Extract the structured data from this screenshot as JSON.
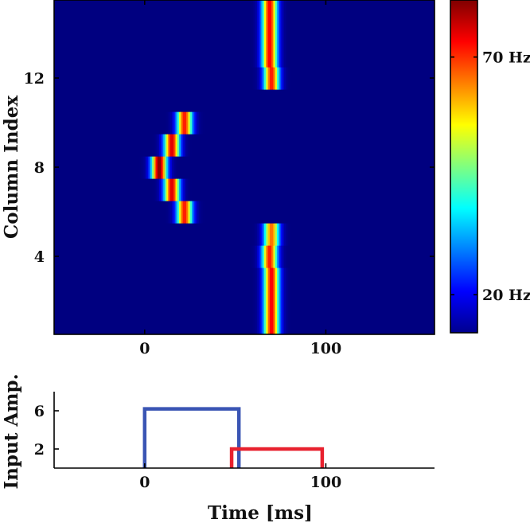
{
  "chart_data": [
    {
      "type": "heatmap",
      "xlabel": "",
      "ylabel": "Column Index",
      "xlim": [
        -50,
        160
      ],
      "ylim": [
        0.5,
        15.5
      ],
      "x_ticks": [
        0,
        100
      ],
      "y_ticks": [
        4,
        8,
        12
      ],
      "colorbar": {
        "ticks": [
          {
            "value": 20,
            "label": "20 Hz"
          },
          {
            "value": 70,
            "label": "70 Hz"
          }
        ],
        "range": [
          12,
          82
        ]
      },
      "colormap": "jet",
      "baseline_rate": 12,
      "grid": false,
      "bursts": [
        {
          "column": 8,
          "time": 8,
          "rate": 82
        },
        {
          "column": 7,
          "time": 15,
          "rate": 76
        },
        {
          "column": 9,
          "time": 15,
          "rate": 76
        },
        {
          "column": 6,
          "time": 22,
          "rate": 72
        },
        {
          "column": 10,
          "time": 22,
          "rate": 72
        },
        {
          "column": 1,
          "time": 70,
          "rate": 74
        },
        {
          "column": 2,
          "time": 70,
          "rate": 74
        },
        {
          "column": 3,
          "time": 70,
          "rate": 74
        },
        {
          "column": 4,
          "time": 69,
          "rate": 72
        },
        {
          "column": 5,
          "time": 70,
          "rate": 66
        },
        {
          "column": 12,
          "time": 70,
          "rate": 72
        },
        {
          "column": 13,
          "time": 69,
          "rate": 74
        },
        {
          "column": 14,
          "time": 69,
          "rate": 74
        },
        {
          "column": 15,
          "time": 69,
          "rate": 74
        }
      ]
    },
    {
      "type": "line",
      "xlabel": "Time [ms]",
      "ylabel": "Input Amp.",
      "xlim": [
        -50,
        160
      ],
      "ylim": [
        0,
        8
      ],
      "x_ticks": [
        0,
        100
      ],
      "y_ticks": [
        2,
        6
      ],
      "grid": false,
      "series": [
        {
          "color": "#3a55b4",
          "x": [
            0,
            0,
            52,
            52
          ],
          "y": [
            0,
            6.2,
            6.2,
            0
          ]
        },
        {
          "color": "#e8212e",
          "x": [
            48,
            48,
            98,
            98
          ],
          "y": [
            0,
            2,
            2,
            0
          ]
        }
      ]
    }
  ]
}
